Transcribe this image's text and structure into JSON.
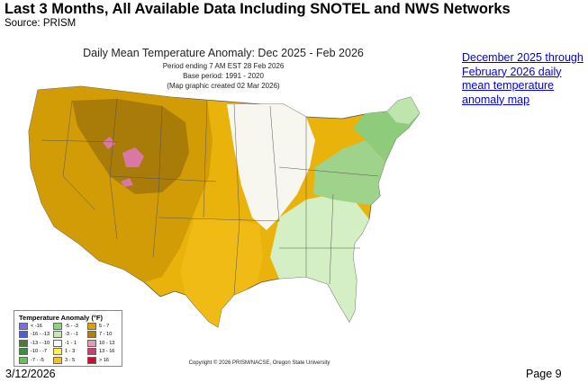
{
  "slide": {
    "title": "Last 3 Months, All Available Data Including SNOTEL and NWS Networks",
    "source": "Source: PRISM"
  },
  "map": {
    "title": "Daily Mean Temperature Anomaly: Dec 2025 - Feb 2026",
    "subtitle_lines": [
      "Period ending 7 AM EST 28 Feb 2026",
      "Base period: 1991 - 2020",
      "(Map graphic created 02 Mar 2026)"
    ],
    "copyright": "Copyright © 2026 PRISM/NACSE, Oregon State University",
    "regions": {
      "west": "#d29c07",
      "plains": "#e9b30c",
      "south_central": "#efbb14",
      "mountain_core": "#a97b08",
      "midwest_neutral": "#f7f7f0",
      "southeast": "#d5efc4",
      "appalachia": "#9fd38b",
      "northeast": "#8ecb7a",
      "new_england": "#bfe5af",
      "hot_spots": "#d779a4"
    },
    "legend": {
      "title": "Temperature Anomaly (°F)",
      "items": [
        {
          "label": "< -16",
          "color": "#7b6fe0"
        },
        {
          "label": "-16 - -13",
          "color": "#4f5fd6"
        },
        {
          "label": "-13 - -10",
          "color": "#4b7a3a"
        },
        {
          "label": "-10 - -7",
          "color": "#3e8f39"
        },
        {
          "label": "-7 - -5",
          "color": "#6cbf5c"
        },
        {
          "label": "-5 - -3",
          "color": "#93d17f"
        },
        {
          "label": "-3 - -1",
          "color": "#c6e8b5"
        },
        {
          "label": "-1 - 1",
          "color": "#ffffff"
        },
        {
          "label": "1 - 3",
          "color": "#fff04a"
        },
        {
          "label": "3 - 5",
          "color": "#f2c22a"
        },
        {
          "label": "5 - 7",
          "color": "#d9a20c"
        },
        {
          "label": "7 - 10",
          "color": "#b07f08"
        },
        {
          "label": "10 - 13",
          "color": "#e39ab5"
        },
        {
          "label": "13 - 16",
          "color": "#c9416f"
        },
        {
          "label": "> 16",
          "color": "#c8102e"
        }
      ]
    }
  },
  "side_link": {
    "text": "December 2025 through February 2026 daily mean temperature anomaly map"
  },
  "footer": {
    "date": "3/12/2026",
    "page": "Page 9"
  }
}
